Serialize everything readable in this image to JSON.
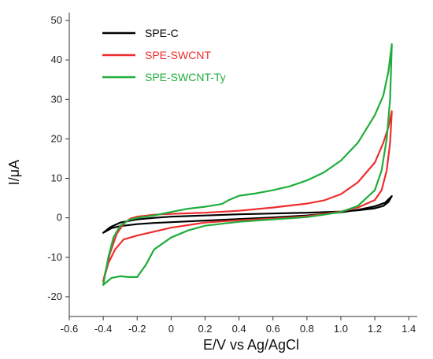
{
  "chart_data": {
    "type": "line",
    "xlabel": "E/V vs Ag/AgCl",
    "ylabel": "I/μA",
    "xlim": [
      -0.6,
      1.45
    ],
    "ylim": [
      -25,
      52
    ],
    "x_ticks": [
      -0.6,
      -0.4,
      -0.2,
      0,
      0.2,
      0.4,
      0.6,
      0.8,
      1.0,
      1.2,
      1.4
    ],
    "x_tick_labels": [
      "-0.6",
      "-0.4",
      "-0.2",
      "0",
      "0.2",
      "0.4",
      "0.6",
      "0.8",
      "1.0",
      "1.2",
      "1.4"
    ],
    "y_ticks": [
      -20,
      -10,
      0,
      10,
      20,
      30,
      40,
      50
    ],
    "y_tick_labels": [
      "-20",
      "-10",
      "0",
      "10",
      "20",
      "30",
      "40",
      "50"
    ],
    "grid": false,
    "legend_position": "top-left",
    "series": [
      {
        "name": "SPE-C",
        "color": "#000000",
        "points": [
          [
            -0.4,
            -3.8
          ],
          [
            -0.35,
            -2.6
          ],
          [
            -0.3,
            -2.1
          ],
          [
            -0.2,
            -1.6
          ],
          [
            -0.1,
            -1.3
          ],
          [
            0.0,
            -1.1
          ],
          [
            0.2,
            -0.7
          ],
          [
            0.4,
            -0.3
          ],
          [
            0.6,
            0.1
          ],
          [
            0.8,
            0.6
          ],
          [
            1.0,
            1.4
          ],
          [
            1.1,
            2.0
          ],
          [
            1.2,
            2.9
          ],
          [
            1.26,
            3.8
          ],
          [
            1.3,
            5.5
          ],
          [
            1.28,
            4.0
          ],
          [
            1.25,
            3.0
          ],
          [
            1.2,
            2.4
          ],
          [
            1.1,
            1.9
          ],
          [
            1.0,
            1.6
          ],
          [
            0.8,
            1.3
          ],
          [
            0.6,
            1.1
          ],
          [
            0.4,
            0.9
          ],
          [
            0.2,
            0.6
          ],
          [
            0.0,
            0.3
          ],
          [
            -0.1,
            0.0
          ],
          [
            -0.2,
            -0.4
          ],
          [
            -0.3,
            -1.2
          ],
          [
            -0.36,
            -2.4
          ],
          [
            -0.4,
            -3.8
          ]
        ]
      },
      {
        "name": "SPE-SWCNT",
        "color": "#ee2d2d",
        "points": [
          [
            -0.4,
            -16.0
          ],
          [
            -0.36,
            -9.0
          ],
          [
            -0.32,
            -4.0
          ],
          [
            -0.28,
            -1.5
          ],
          [
            -0.24,
            -0.2
          ],
          [
            -0.2,
            0.3
          ],
          [
            -0.1,
            0.8
          ],
          [
            0.0,
            1.0
          ],
          [
            0.2,
            1.3
          ],
          [
            0.4,
            1.8
          ],
          [
            0.6,
            2.6
          ],
          [
            0.8,
            3.6
          ],
          [
            0.9,
            4.4
          ],
          [
            1.0,
            6.0
          ],
          [
            1.1,
            9.0
          ],
          [
            1.2,
            14.0
          ],
          [
            1.25,
            19.0
          ],
          [
            1.28,
            23.0
          ],
          [
            1.3,
            27.0
          ],
          [
            1.29,
            19.0
          ],
          [
            1.27,
            12.0
          ],
          [
            1.24,
            7.0
          ],
          [
            1.2,
            4.5
          ],
          [
            1.1,
            2.6
          ],
          [
            1.0,
            1.6
          ],
          [
            0.8,
            0.4
          ],
          [
            0.6,
            -0.2
          ],
          [
            0.4,
            -0.6
          ],
          [
            0.2,
            -1.2
          ],
          [
            0.0,
            -2.5
          ],
          [
            -0.1,
            -3.5
          ],
          [
            -0.2,
            -4.5
          ],
          [
            -0.28,
            -5.5
          ],
          [
            -0.33,
            -8.0
          ],
          [
            -0.37,
            -11.5
          ],
          [
            -0.4,
            -16.0
          ]
        ]
      },
      {
        "name": "SPE-SWCNT-Ty",
        "color": "#1fad3c",
        "points": [
          [
            -0.4,
            -17.0
          ],
          [
            -0.37,
            -10.0
          ],
          [
            -0.34,
            -5.0
          ],
          [
            -0.3,
            -2.0
          ],
          [
            -0.25,
            -0.6
          ],
          [
            -0.2,
            0.0
          ],
          [
            -0.1,
            0.6
          ],
          [
            0.0,
            1.5
          ],
          [
            0.1,
            2.3
          ],
          [
            0.2,
            2.8
          ],
          [
            0.3,
            3.5
          ],
          [
            0.34,
            4.5
          ],
          [
            0.4,
            5.6
          ],
          [
            0.5,
            6.2
          ],
          [
            0.6,
            7.0
          ],
          [
            0.7,
            8.0
          ],
          [
            0.8,
            9.5
          ],
          [
            0.9,
            11.5
          ],
          [
            1.0,
            14.5
          ],
          [
            1.1,
            19.0
          ],
          [
            1.2,
            26.0
          ],
          [
            1.25,
            31.0
          ],
          [
            1.28,
            37.0
          ],
          [
            1.3,
            44.0
          ],
          [
            1.29,
            30.0
          ],
          [
            1.27,
            20.0
          ],
          [
            1.24,
            12.0
          ],
          [
            1.2,
            7.0
          ],
          [
            1.1,
            3.0
          ],
          [
            1.0,
            1.5
          ],
          [
            0.9,
            0.8
          ],
          [
            0.8,
            0.2
          ],
          [
            0.6,
            -0.4
          ],
          [
            0.4,
            -1.0
          ],
          [
            0.2,
            -2.0
          ],
          [
            0.1,
            -3.2
          ],
          [
            0.0,
            -5.0
          ],
          [
            -0.1,
            -8.0
          ],
          [
            -0.15,
            -12.0
          ],
          [
            -0.2,
            -15.0
          ],
          [
            -0.25,
            -15.0
          ],
          [
            -0.3,
            -14.8
          ],
          [
            -0.35,
            -15.2
          ],
          [
            -0.4,
            -17.0
          ]
        ]
      }
    ]
  }
}
